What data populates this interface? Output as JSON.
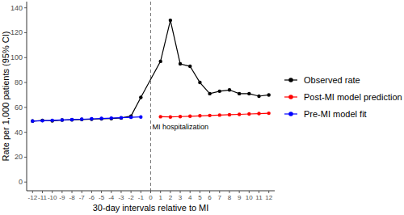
{
  "chart_data": {
    "type": "line",
    "x_label": "30-day intervals relative to MI",
    "y_label": "Rate per 1,000 patients (95% CI)",
    "annotations": [
      {
        "text": "MI hospitalization",
        "x": 0
      }
    ],
    "xlim": [
      -12.6,
      12.6
    ],
    "xticks": [
      -12,
      -11,
      -10,
      -9,
      -8,
      -7,
      -6,
      -5,
      -4,
      -3,
      -2,
      -1,
      0,
      1,
      2,
      3,
      4,
      5,
      6,
      7,
      8,
      9,
      10,
      11,
      12
    ],
    "ylim": [
      -7,
      145
    ],
    "yticks": [
      0,
      20,
      40,
      60,
      80,
      100,
      120,
      140
    ],
    "grid": false,
    "legend": "right",
    "series": [
      {
        "name": "Observed rate",
        "color": "#000000",
        "marker": "circle",
        "x": [
          -12,
          -11,
          -10,
          -9,
          -8,
          -7,
          -6,
          -5,
          -4,
          -3,
          -2,
          -1,
          1,
          2,
          3,
          4,
          5,
          6,
          7,
          8,
          9,
          10,
          11,
          12
        ],
        "values": [
          49,
          49.5,
          49.2,
          49.8,
          50,
          50.3,
          50.5,
          50.8,
          51,
          51.5,
          53,
          68,
          97,
          130,
          95,
          93,
          80,
          71,
          73,
          74,
          71,
          71,
          69,
          70
        ]
      },
      {
        "name": "Post-MI model prediction",
        "color": "#ff0000",
        "marker": "circle",
        "x": [
          1,
          2,
          3,
          4,
          5,
          6,
          7,
          8,
          9,
          10,
          11,
          12
        ],
        "values": [
          52.5,
          52.3,
          52.6,
          52.9,
          53.2,
          53.5,
          53.8,
          54.1,
          54.4,
          54.7,
          55,
          55.3
        ]
      },
      {
        "name": "Pre-MI model fit",
        "color": "#0000ff",
        "marker": "circle",
        "x": [
          -12,
          -11,
          -10,
          -9,
          -8,
          -7,
          -6,
          -5,
          -4,
          -3,
          -2,
          -1
        ],
        "values": [
          49,
          49.3,
          49.6,
          49.9,
          50.2,
          50.5,
          50.8,
          51.1,
          51.4,
          51.7,
          52,
          52.3
        ]
      }
    ]
  }
}
